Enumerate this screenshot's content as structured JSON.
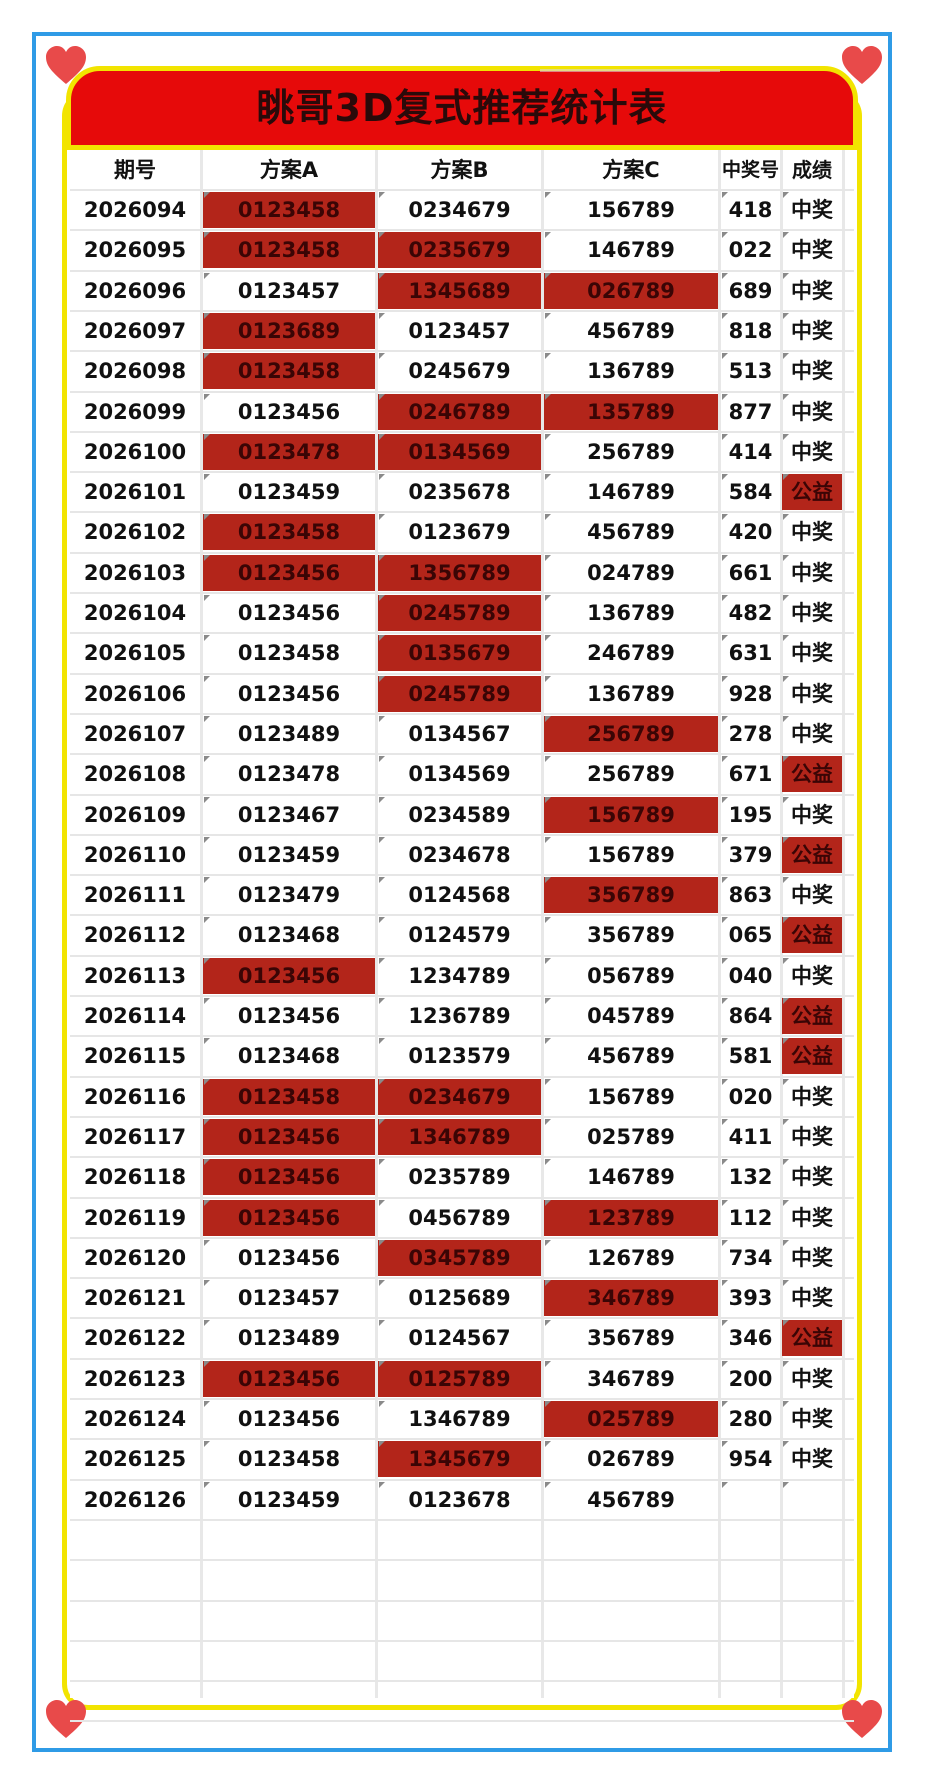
{
  "title": "眺哥3D复式推荐统计表",
  "colors": {
    "frame": "#2f9be6",
    "banner": "#e60a0a",
    "yellow": "#f2e400",
    "hit": "#b3251a",
    "heart": "#e84a4a"
  },
  "table": {
    "headers": [
      "期号",
      "方案A",
      "方案B",
      "方案C",
      "中奖号",
      "成绩"
    ],
    "rows": [
      {
        "issue": "2026094",
        "a": "0123458",
        "b": "0234679",
        "c": "156789",
        "win": "418",
        "result": "中奖",
        "ha": true,
        "hb": false,
        "hc": false,
        "hr": false
      },
      {
        "issue": "2026095",
        "a": "0123458",
        "b": "0235679",
        "c": "146789",
        "win": "022",
        "result": "中奖",
        "ha": true,
        "hb": true,
        "hc": false,
        "hr": false
      },
      {
        "issue": "2026096",
        "a": "0123457",
        "b": "1345689",
        "c": "026789",
        "win": "689",
        "result": "中奖",
        "ha": false,
        "hb": true,
        "hc": true,
        "hr": false
      },
      {
        "issue": "2026097",
        "a": "0123689",
        "b": "0123457",
        "c": "456789",
        "win": "818",
        "result": "中奖",
        "ha": true,
        "hb": false,
        "hc": false,
        "hr": false
      },
      {
        "issue": "2026098",
        "a": "0123458",
        "b": "0245679",
        "c": "136789",
        "win": "513",
        "result": "中奖",
        "ha": true,
        "hb": false,
        "hc": false,
        "hr": false
      },
      {
        "issue": "2026099",
        "a": "0123456",
        "b": "0246789",
        "c": "135789",
        "win": "877",
        "result": "中奖",
        "ha": false,
        "hb": true,
        "hc": true,
        "hr": false
      },
      {
        "issue": "2026100",
        "a": "0123478",
        "b": "0134569",
        "c": "256789",
        "win": "414",
        "result": "中奖",
        "ha": true,
        "hb": true,
        "hc": false,
        "hr": false
      },
      {
        "issue": "2026101",
        "a": "0123459",
        "b": "0235678",
        "c": "146789",
        "win": "584",
        "result": "公益",
        "ha": false,
        "hb": false,
        "hc": false,
        "hr": true
      },
      {
        "issue": "2026102",
        "a": "0123458",
        "b": "0123679",
        "c": "456789",
        "win": "420",
        "result": "中奖",
        "ha": true,
        "hb": false,
        "hc": false,
        "hr": false
      },
      {
        "issue": "2026103",
        "a": "0123456",
        "b": "1356789",
        "c": "024789",
        "win": "661",
        "result": "中奖",
        "ha": true,
        "hb": true,
        "hc": false,
        "hr": false
      },
      {
        "issue": "2026104",
        "a": "0123456",
        "b": "0245789",
        "c": "136789",
        "win": "482",
        "result": "中奖",
        "ha": false,
        "hb": true,
        "hc": false,
        "hr": false
      },
      {
        "issue": "2026105",
        "a": "0123458",
        "b": "0135679",
        "c": "246789",
        "win": "631",
        "result": "中奖",
        "ha": false,
        "hb": true,
        "hc": false,
        "hr": false
      },
      {
        "issue": "2026106",
        "a": "0123456",
        "b": "0245789",
        "c": "136789",
        "win": "928",
        "result": "中奖",
        "ha": false,
        "hb": true,
        "hc": false,
        "hr": false
      },
      {
        "issue": "2026107",
        "a": "0123489",
        "b": "0134567",
        "c": "256789",
        "win": "278",
        "result": "中奖",
        "ha": false,
        "hb": false,
        "hc": true,
        "hr": false
      },
      {
        "issue": "2026108",
        "a": "0123478",
        "b": "0134569",
        "c": "256789",
        "win": "671",
        "result": "公益",
        "ha": false,
        "hb": false,
        "hc": false,
        "hr": true
      },
      {
        "issue": "2026109",
        "a": "0123467",
        "b": "0234589",
        "c": "156789",
        "win": "195",
        "result": "中奖",
        "ha": false,
        "hb": false,
        "hc": true,
        "hr": false
      },
      {
        "issue": "2026110",
        "a": "0123459",
        "b": "0234678",
        "c": "156789",
        "win": "379",
        "result": "公益",
        "ha": false,
        "hb": false,
        "hc": false,
        "hr": true
      },
      {
        "issue": "2026111",
        "a": "0123479",
        "b": "0124568",
        "c": "356789",
        "win": "863",
        "result": "中奖",
        "ha": false,
        "hb": false,
        "hc": true,
        "hr": false
      },
      {
        "issue": "2026112",
        "a": "0123468",
        "b": "0124579",
        "c": "356789",
        "win": "065",
        "result": "公益",
        "ha": false,
        "hb": false,
        "hc": false,
        "hr": true
      },
      {
        "issue": "2026113",
        "a": "0123456",
        "b": "1234789",
        "c": "056789",
        "win": "040",
        "result": "中奖",
        "ha": true,
        "hb": false,
        "hc": false,
        "hr": false
      },
      {
        "issue": "2026114",
        "a": "0123456",
        "b": "1236789",
        "c": "045789",
        "win": "864",
        "result": "公益",
        "ha": false,
        "hb": false,
        "hc": false,
        "hr": true
      },
      {
        "issue": "2026115",
        "a": "0123468",
        "b": "0123579",
        "c": "456789",
        "win": "581",
        "result": "公益",
        "ha": false,
        "hb": false,
        "hc": false,
        "hr": true
      },
      {
        "issue": "2026116",
        "a": "0123458",
        "b": "0234679",
        "c": "156789",
        "win": "020",
        "result": "中奖",
        "ha": true,
        "hb": true,
        "hc": false,
        "hr": false
      },
      {
        "issue": "2026117",
        "a": "0123456",
        "b": "1346789",
        "c": "025789",
        "win": "411",
        "result": "中奖",
        "ha": true,
        "hb": true,
        "hc": false,
        "hr": false
      },
      {
        "issue": "2026118",
        "a": "0123456",
        "b": "0235789",
        "c": "146789",
        "win": "132",
        "result": "中奖",
        "ha": true,
        "hb": false,
        "hc": false,
        "hr": false
      },
      {
        "issue": "2026119",
        "a": "0123456",
        "b": "0456789",
        "c": "123789",
        "win": "112",
        "result": "中奖",
        "ha": true,
        "hb": false,
        "hc": true,
        "hr": false
      },
      {
        "issue": "2026120",
        "a": "0123456",
        "b": "0345789",
        "c": "126789",
        "win": "734",
        "result": "中奖",
        "ha": false,
        "hb": true,
        "hc": false,
        "hr": false
      },
      {
        "issue": "2026121",
        "a": "0123457",
        "b": "0125689",
        "c": "346789",
        "win": "393",
        "result": "中奖",
        "ha": false,
        "hb": false,
        "hc": true,
        "hr": false
      },
      {
        "issue": "2026122",
        "a": "0123489",
        "b": "0124567",
        "c": "356789",
        "win": "346",
        "result": "公益",
        "ha": false,
        "hb": false,
        "hc": false,
        "hr": true
      },
      {
        "issue": "2026123",
        "a": "0123456",
        "b": "0125789",
        "c": "346789",
        "win": "200",
        "result": "中奖",
        "ha": true,
        "hb": true,
        "hc": false,
        "hr": false
      },
      {
        "issue": "2026124",
        "a": "0123456",
        "b": "1346789",
        "c": "025789",
        "win": "280",
        "result": "中奖",
        "ha": false,
        "hb": false,
        "hc": true,
        "hr": false
      },
      {
        "issue": "2026125",
        "a": "0123458",
        "b": "1345679",
        "c": "026789",
        "win": "954",
        "result": "中奖",
        "ha": false,
        "hb": true,
        "hc": false,
        "hr": false
      },
      {
        "issue": "2026126",
        "a": "0123459",
        "b": "0123678",
        "c": "456789",
        "win": "",
        "result": "",
        "ha": false,
        "hb": false,
        "hc": false,
        "hr": false
      }
    ]
  }
}
